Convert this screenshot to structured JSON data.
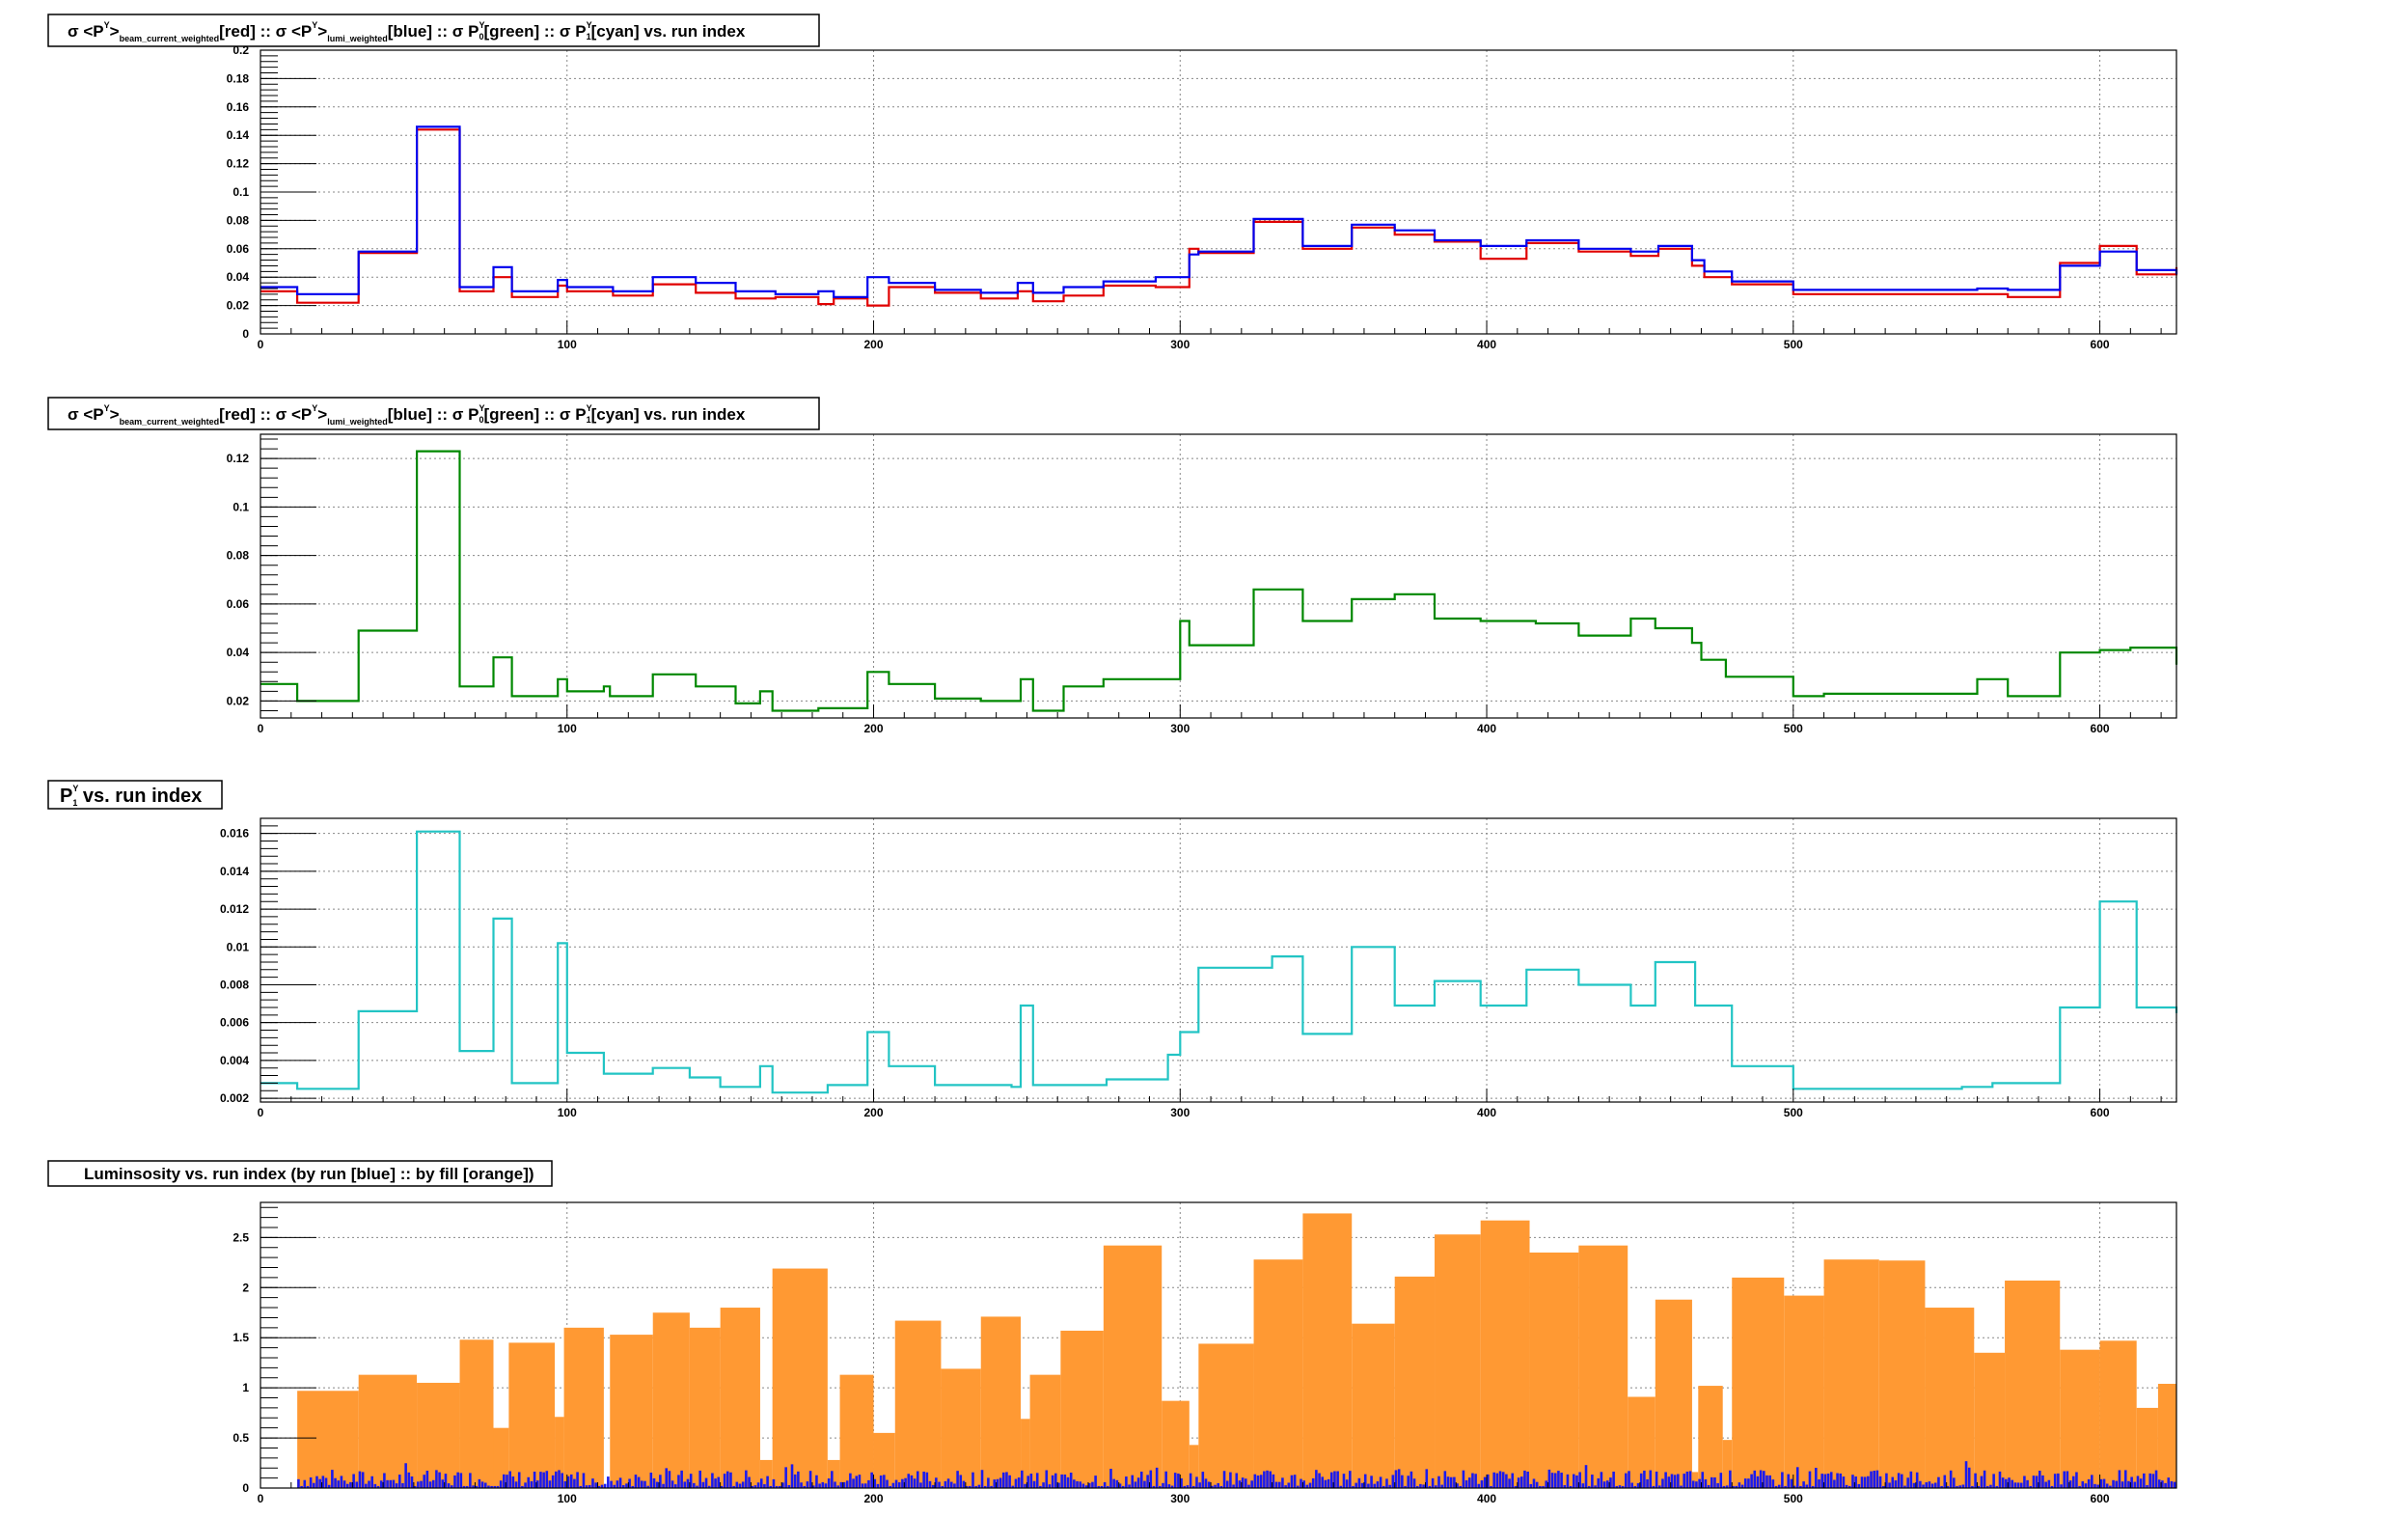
{
  "colors": {
    "red": "#e00000",
    "blue": "#0000ee",
    "green": "#008800",
    "cyan": "#22c4c4",
    "orange": "#ff9933",
    "lumiBlue": "#1a1aee"
  },
  "chart_data": [
    {
      "type": "line",
      "step": true,
      "title": {
        "p1": "σ <P",
        "p2": "Y",
        "p3": ">",
        "p4": "beam_current_weighted",
        "p5": "[red] :: σ <P",
        "p6": "Y",
        "p7": ">",
        "p8": "lumi_weighted",
        "p9": "[blue] :: σ P",
        "p10": "Y",
        "p11": "0",
        "p12": "[green] :: σ P",
        "p13": "Y",
        "p14": "1",
        "p15": "[cyan] vs. run index"
      },
      "xlim": [
        0,
        625
      ],
      "ylim": [
        0,
        0.2
      ],
      "yticks": [
        0,
        0.02,
        0.04,
        0.06,
        0.08,
        0.1,
        0.12,
        0.14,
        0.16,
        0.18,
        0.2
      ],
      "yticklabels": [
        "0",
        "0.02",
        "0.04",
        "0.06",
        "0.08",
        "0.1",
        "0.12",
        "0.14",
        "0.16",
        "0.18",
        "0.2"
      ],
      "xticks": [
        0,
        100,
        200,
        300,
        400,
        500,
        600
      ],
      "xticklabels": [
        "0",
        "100",
        "200",
        "300",
        "400",
        "500",
        "600"
      ],
      "grid": true,
      "series": [
        {
          "color": "red",
          "x": [
            0,
            12,
            32,
            51,
            65,
            76,
            82,
            97,
            100,
            115,
            128,
            142,
            155,
            168,
            182,
            187,
            198,
            205,
            220,
            235,
            247,
            252,
            262,
            275,
            292,
            303,
            306,
            324,
            340,
            356,
            370,
            383,
            398,
            413,
            430,
            447,
            456,
            467,
            471,
            480,
            500,
            525,
            545,
            560,
            570,
            587,
            600,
            612,
            625
          ],
          "y": [
            0.03,
            0.022,
            0.057,
            0.144,
            0.03,
            0.04,
            0.026,
            0.034,
            0.03,
            0.027,
            0.035,
            0.029,
            0.025,
            0.026,
            0.021,
            0.025,
            0.02,
            0.033,
            0.029,
            0.025,
            0.03,
            0.023,
            0.027,
            0.034,
            0.033,
            0.06,
            0.057,
            0.079,
            0.06,
            0.075,
            0.07,
            0.065,
            0.053,
            0.064,
            0.058,
            0.055,
            0.06,
            0.048,
            0.04,
            0.035,
            0.028,
            0.028,
            0.028,
            0.028,
            0.026,
            0.05,
            0.062,
            0.042,
            0.047
          ]
        },
        {
          "color": "blue",
          "x": [
            0,
            12,
            32,
            51,
            65,
            76,
            82,
            97,
            100,
            115,
            128,
            142,
            155,
            168,
            182,
            187,
            198,
            205,
            220,
            235,
            247,
            252,
            262,
            275,
            292,
            303,
            306,
            324,
            340,
            356,
            370,
            383,
            398,
            413,
            430,
            447,
            456,
            467,
            471,
            480,
            500,
            525,
            545,
            560,
            570,
            587,
            600,
            612,
            625
          ],
          "y": [
            0.033,
            0.028,
            0.058,
            0.146,
            0.033,
            0.047,
            0.03,
            0.038,
            0.033,
            0.03,
            0.04,
            0.036,
            0.03,
            0.028,
            0.03,
            0.026,
            0.04,
            0.036,
            0.031,
            0.029,
            0.036,
            0.029,
            0.033,
            0.037,
            0.04,
            0.056,
            0.058,
            0.081,
            0.062,
            0.077,
            0.073,
            0.066,
            0.062,
            0.066,
            0.06,
            0.058,
            0.062,
            0.052,
            0.044,
            0.037,
            0.031,
            0.031,
            0.031,
            0.032,
            0.031,
            0.048,
            0.058,
            0.045,
            0.042
          ]
        }
      ]
    },
    {
      "type": "line",
      "step": true,
      "title": {
        "p1": "σ <P",
        "p2": "Y",
        "p3": ">",
        "p4": "beam_current_weighted",
        "p5": "[red] :: σ <P",
        "p6": "Y",
        "p7": ">",
        "p8": "lumi_weighted",
        "p9": "[blue] :: σ P",
        "p10": "Y",
        "p11": "0",
        "p12": "[green] :: σ P",
        "p13": "Y",
        "p14": "1",
        "p15": "[cyan] vs. run index"
      },
      "xlim": [
        0,
        625
      ],
      "ylim": [
        0.013,
        0.13
      ],
      "yticks": [
        0.02,
        0.04,
        0.06,
        0.08,
        0.1,
        0.12
      ],
      "yticklabels": [
        "0.02",
        "0.04",
        "0.06",
        "0.08",
        "0.1",
        "0.12"
      ],
      "xticks": [
        0,
        100,
        200,
        300,
        400,
        500,
        600
      ],
      "xticklabels": [
        "0",
        "100",
        "200",
        "300",
        "400",
        "500",
        "600"
      ],
      "grid": true,
      "series": [
        {
          "color": "green",
          "x": [
            0,
            12,
            32,
            51,
            65,
            76,
            82,
            97,
            100,
            112,
            114,
            128,
            142,
            155,
            163,
            167,
            182,
            198,
            205,
            220,
            235,
            248,
            252,
            262,
            275,
            300,
            303,
            324,
            340,
            356,
            370,
            383,
            398,
            416,
            430,
            447,
            455,
            467,
            470,
            478,
            500,
            510,
            560,
            570,
            587,
            600,
            610,
            625
          ],
          "y": [
            0.027,
            0.02,
            0.049,
            0.123,
            0.026,
            0.038,
            0.022,
            0.029,
            0.024,
            0.026,
            0.022,
            0.031,
            0.026,
            0.019,
            0.024,
            0.016,
            0.017,
            0.032,
            0.027,
            0.021,
            0.02,
            0.029,
            0.016,
            0.026,
            0.029,
            0.053,
            0.043,
            0.066,
            0.053,
            0.062,
            0.064,
            0.054,
            0.053,
            0.052,
            0.047,
            0.054,
            0.05,
            0.044,
            0.037,
            0.03,
            0.022,
            0.023,
            0.029,
            0.022,
            0.04,
            0.041,
            0.042,
            0.035
          ]
        }
      ]
    },
    {
      "type": "line",
      "step": true,
      "title": {
        "p1": "P",
        "p2": "Y",
        "p3": "1",
        "p4": " vs. run index"
      },
      "xlim": [
        0,
        625
      ],
      "ylim": [
        0.0018,
        0.0168
      ],
      "yticks": [
        0.002,
        0.004,
        0.006,
        0.008,
        0.01,
        0.012,
        0.014,
        0.016
      ],
      "yticklabels": [
        "0.002",
        "0.004",
        "0.006",
        "0.008",
        "0.01",
        "0.012",
        "0.014",
        "0.016"
      ],
      "xticks": [
        0,
        100,
        200,
        300,
        400,
        500,
        600
      ],
      "xticklabels": [
        "0",
        "100",
        "200",
        "300",
        "400",
        "500",
        "600"
      ],
      "grid": true,
      "series": [
        {
          "color": "cyan",
          "x": [
            0,
            12,
            32,
            51,
            65,
            76,
            82,
            97,
            100,
            112,
            128,
            140,
            150,
            163,
            167,
            185,
            198,
            205,
            220,
            245,
            248,
            252,
            276,
            296,
            300,
            306,
            330,
            340,
            356,
            370,
            383,
            398,
            413,
            430,
            447,
            455,
            468,
            480,
            500,
            520,
            545,
            555,
            565,
            587,
            600,
            612,
            625
          ],
          "y": [
            0.0028,
            0.0025,
            0.0066,
            0.0161,
            0.0045,
            0.0115,
            0.0028,
            0.0102,
            0.0044,
            0.0033,
            0.0036,
            0.0031,
            0.0026,
            0.0037,
            0.0023,
            0.0027,
            0.0055,
            0.0037,
            0.0027,
            0.0026,
            0.0069,
            0.0027,
            0.003,
            0.0043,
            0.0055,
            0.0089,
            0.0095,
            0.0054,
            0.01,
            0.0069,
            0.0082,
            0.0069,
            0.0088,
            0.008,
            0.0069,
            0.0092,
            0.0069,
            0.0037,
            0.0025,
            0.0025,
            0.0025,
            0.0026,
            0.0028,
            0.0068,
            0.0124,
            0.0068,
            0.0065
          ]
        }
      ]
    },
    {
      "type": "bar",
      "title": {
        "p1": "Luminsosity vs. run index (by run [blue] :: by fill [orange])"
      },
      "xlim": [
        0,
        625
      ],
      "ylim": [
        0,
        2.85
      ],
      "yticks": [
        0,
        0.5,
        1,
        1.5,
        2,
        2.5
      ],
      "yticklabels": [
        "0",
        "0.5",
        "1",
        "1.5",
        "2",
        "2.5"
      ],
      "xticks": [
        0,
        100,
        200,
        300,
        400,
        500,
        600
      ],
      "xticklabels": [
        "0",
        "100",
        "200",
        "300",
        "400",
        "500",
        "600"
      ],
      "grid": true,
      "fill_bins": [
        [
          12,
          32,
          0.97
        ],
        [
          32,
          51,
          1.13
        ],
        [
          51,
          65,
          1.05
        ],
        [
          65,
          76,
          1.48
        ],
        [
          76,
          81,
          0.6
        ],
        [
          81,
          96,
          1.45
        ],
        [
          96,
          99,
          0.71
        ],
        [
          99,
          112,
          1.6
        ],
        [
          114,
          128,
          1.53
        ],
        [
          128,
          140,
          1.75
        ],
        [
          140,
          150,
          1.6
        ],
        [
          150,
          163,
          1.8
        ],
        [
          163,
          167,
          0.28
        ],
        [
          167,
          185,
          2.19
        ],
        [
          185,
          189,
          0.28
        ],
        [
          189,
          200,
          1.13
        ],
        [
          200,
          207,
          0.55
        ],
        [
          207,
          222,
          1.67
        ],
        [
          222,
          235,
          1.19
        ],
        [
          235,
          248,
          1.71
        ],
        [
          248,
          251,
          0.69
        ],
        [
          251,
          261,
          1.13
        ],
        [
          261,
          275,
          1.57
        ],
        [
          275,
          294,
          2.42
        ],
        [
          294,
          303,
          0.87
        ],
        [
          303,
          306,
          0.43
        ],
        [
          306,
          324,
          1.44
        ],
        [
          324,
          340,
          2.28
        ],
        [
          340,
          356,
          2.74
        ],
        [
          356,
          370,
          1.64
        ],
        [
          370,
          383,
          2.11
        ],
        [
          383,
          398,
          2.53
        ],
        [
          398,
          414,
          2.67
        ],
        [
          414,
          430,
          2.35
        ],
        [
          430,
          446,
          2.42
        ],
        [
          446,
          455,
          0.91
        ],
        [
          455,
          467,
          1.88
        ],
        [
          467,
          469,
          0.16
        ],
        [
          469,
          477,
          1.02
        ],
        [
          477,
          480,
          0.48
        ],
        [
          480,
          497,
          2.1
        ],
        [
          497,
          510,
          1.92
        ],
        [
          510,
          528,
          2.28
        ],
        [
          528,
          543,
          2.27
        ],
        [
          543,
          559,
          1.8
        ],
        [
          559,
          569,
          1.35
        ],
        [
          569,
          587,
          2.07
        ],
        [
          587,
          600,
          1.38
        ],
        [
          600,
          612,
          1.47
        ],
        [
          612,
          619,
          0.8
        ],
        [
          619,
          625,
          1.04
        ]
      ],
      "run_bars": {
        "x_start": 12,
        "x_end": 625,
        "mean": 0.09,
        "spread": 0.13
      }
    }
  ]
}
